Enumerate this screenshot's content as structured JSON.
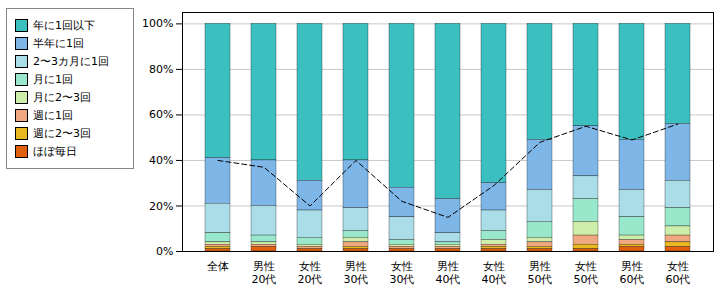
{
  "chart_data": {
    "type": "bar",
    "stacked": true,
    "categories": [
      "全体",
      "男性\n20代",
      "女性\n20代",
      "男性\n30代",
      "女性\n30代",
      "男性\n40代",
      "女性\n40代",
      "男性\n50代",
      "女性\n50代",
      "男性\n60代",
      "女性\n60代"
    ],
    "series": [
      {
        "name": "年に1回以下",
        "color": "#3BBFBF",
        "values": [
          59,
          60,
          69,
          60,
          72,
          77,
          70,
          51,
          45,
          51,
          44
        ]
      },
      {
        "name": "半年に1回",
        "color": "#7EB6E8",
        "values": [
          20,
          20,
          13,
          21,
          13,
          15,
          12,
          22,
          22,
          22,
          25
        ]
      },
      {
        "name": "2〜3カ月に1回",
        "color": "#AADDE8",
        "values": [
          13,
          13,
          12,
          10,
          10,
          4,
          9,
          14,
          10,
          12,
          12
        ]
      },
      {
        "name": "月に1回",
        "color": "#99E8CC",
        "values": [
          4,
          3,
          3,
          3,
          2,
          1,
          4,
          7,
          10,
          8,
          8
        ]
      },
      {
        "name": "月に2〜3回",
        "color": "#CCEEAA",
        "values": [
          1,
          1,
          1,
          2,
          1,
          1,
          2,
          2,
          6,
          2,
          4
        ]
      },
      {
        "name": "週に1回",
        "color": "#F0A880",
        "values": [
          1,
          1,
          1,
          2,
          1,
          1,
          1,
          2,
          4,
          2,
          3
        ]
      },
      {
        "name": "週に2〜3回",
        "color": "#E8B820",
        "values": [
          1,
          0,
          0,
          1,
          0,
          0,
          1,
          1,
          2,
          1,
          2
        ]
      },
      {
        "name": "ほぼ毎日",
        "color": "#E06010",
        "values": [
          1,
          2,
          1,
          1,
          1,
          1,
          1,
          1,
          1,
          2,
          2
        ]
      },
      {
        "type": "line",
        "line_style": "dashed",
        "color": "#000000",
        "values": [
          40,
          37,
          20,
          40,
          22,
          15,
          29,
          48,
          55,
          49,
          56
        ]
      }
    ],
    "ylim": [
      0,
      105
    ],
    "yticks": [
      {
        "value": 0,
        "label": "0%"
      },
      {
        "value": 20,
        "label": "20%"
      },
      {
        "value": 40,
        "label": "40%"
      },
      {
        "value": 60,
        "label": "60%"
      },
      {
        "value": 80,
        "label": "80%"
      },
      {
        "value": 100,
        "label": "100%"
      }
    ],
    "grid": true,
    "legend": "left"
  }
}
